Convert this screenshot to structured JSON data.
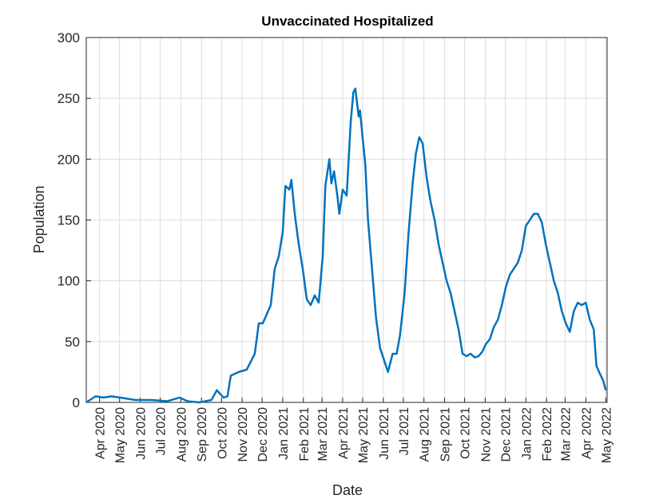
{
  "chart_data": {
    "type": "line",
    "title": "Unvaccinated Hospitalized",
    "x_label": "Date",
    "y_label": "Population",
    "grid": true,
    "xlim": [
      -20,
      762
    ],
    "ylim": [
      0,
      300
    ],
    "yticks": [
      0,
      50,
      100,
      150,
      200,
      250,
      300
    ],
    "xticks": [
      {
        "value": 0,
        "label": "Apr 2020"
      },
      {
        "value": 30,
        "label": "May 2020"
      },
      {
        "value": 61,
        "label": "Jun 2020"
      },
      {
        "value": 91,
        "label": "Jul 2020"
      },
      {
        "value": 122,
        "label": "Aug 2020"
      },
      {
        "value": 153,
        "label": "Sep 2020"
      },
      {
        "value": 183,
        "label": "Oct 2020"
      },
      {
        "value": 214,
        "label": "Nov 2020"
      },
      {
        "value": 244,
        "label": "Dec 2020"
      },
      {
        "value": 275,
        "label": "Jan 2021"
      },
      {
        "value": 306,
        "label": "Feb 2021"
      },
      {
        "value": 334,
        "label": "Mar 2021"
      },
      {
        "value": 365,
        "label": "Apr 2021"
      },
      {
        "value": 395,
        "label": "May 2021"
      },
      {
        "value": 426,
        "label": "Jun 2021"
      },
      {
        "value": 456,
        "label": "Jul 2021"
      },
      {
        "value": 487,
        "label": "Aug 2021"
      },
      {
        "value": 518,
        "label": "Sep 2021"
      },
      {
        "value": 548,
        "label": "Oct 2021"
      },
      {
        "value": 579,
        "label": "Nov 2021"
      },
      {
        "value": 609,
        "label": "Dec 2021"
      },
      {
        "value": 640,
        "label": "Jan 2022"
      },
      {
        "value": 671,
        "label": "Feb 2022"
      },
      {
        "value": 699,
        "label": "Mar 2022"
      },
      {
        "value": 730,
        "label": "Apr 2022"
      },
      {
        "value": 760,
        "label": "May 2022"
      }
    ],
    "series": [
      {
        "color": "#0072bd",
        "x": [
          -20,
          -6,
          6,
          18,
          30,
          54,
          78,
          102,
          120,
          132,
          150,
          168,
          176,
          186,
          192,
          197,
          209,
          221,
          233,
          239,
          245,
          257,
          263,
          269,
          275,
          279,
          285,
          288,
          293,
          299,
          305,
          311,
          317,
          323,
          329,
          335,
          339,
          345,
          348,
          352,
          357,
          360,
          365,
          371,
          377,
          381,
          384,
          389,
          391,
          399,
          403,
          409,
          415,
          421,
          427,
          433,
          440,
          446,
          451,
          458,
          464,
          470,
          475,
          480,
          485,
          491,
          497,
          503,
          509,
          515,
          521,
          527,
          533,
          539,
          545,
          551,
          557,
          563,
          569,
          575,
          580,
          586,
          592,
          598,
          604,
          610,
          616,
          622,
          628,
          634,
          640,
          646,
          652,
          658,
          664,
          670,
          676,
          682,
          688,
          694,
          700,
          706,
          712,
          718,
          724,
          730,
          736,
          742,
          746,
          750,
          756,
          760
        ],
        "values": [
          0,
          5,
          4,
          5,
          4,
          2,
          2,
          1,
          4,
          1,
          0,
          2,
          10,
          4,
          5,
          22,
          25,
          27,
          40,
          65,
          65,
          80,
          110,
          120,
          140,
          178,
          175,
          183,
          155,
          130,
          110,
          85,
          80,
          88,
          82,
          120,
          178,
          200,
          180,
          190,
          170,
          155,
          175,
          170,
          230,
          255,
          258,
          235,
          240,
          195,
          150,
          110,
          70,
          45,
          35,
          25,
          40,
          40,
          55,
          90,
          140,
          180,
          205,
          218,
          213,
          185,
          165,
          150,
          130,
          115,
          100,
          90,
          75,
          60,
          40,
          38,
          40,
          37,
          38,
          42,
          48,
          52,
          62,
          68,
          80,
          95,
          105,
          110,
          115,
          125,
          145,
          150,
          155,
          155,
          148,
          130,
          115,
          100,
          90,
          75,
          65,
          58,
          75,
          82,
          80,
          82,
          68,
          60,
          30,
          25,
          18,
          10
        ]
      }
    ]
  }
}
